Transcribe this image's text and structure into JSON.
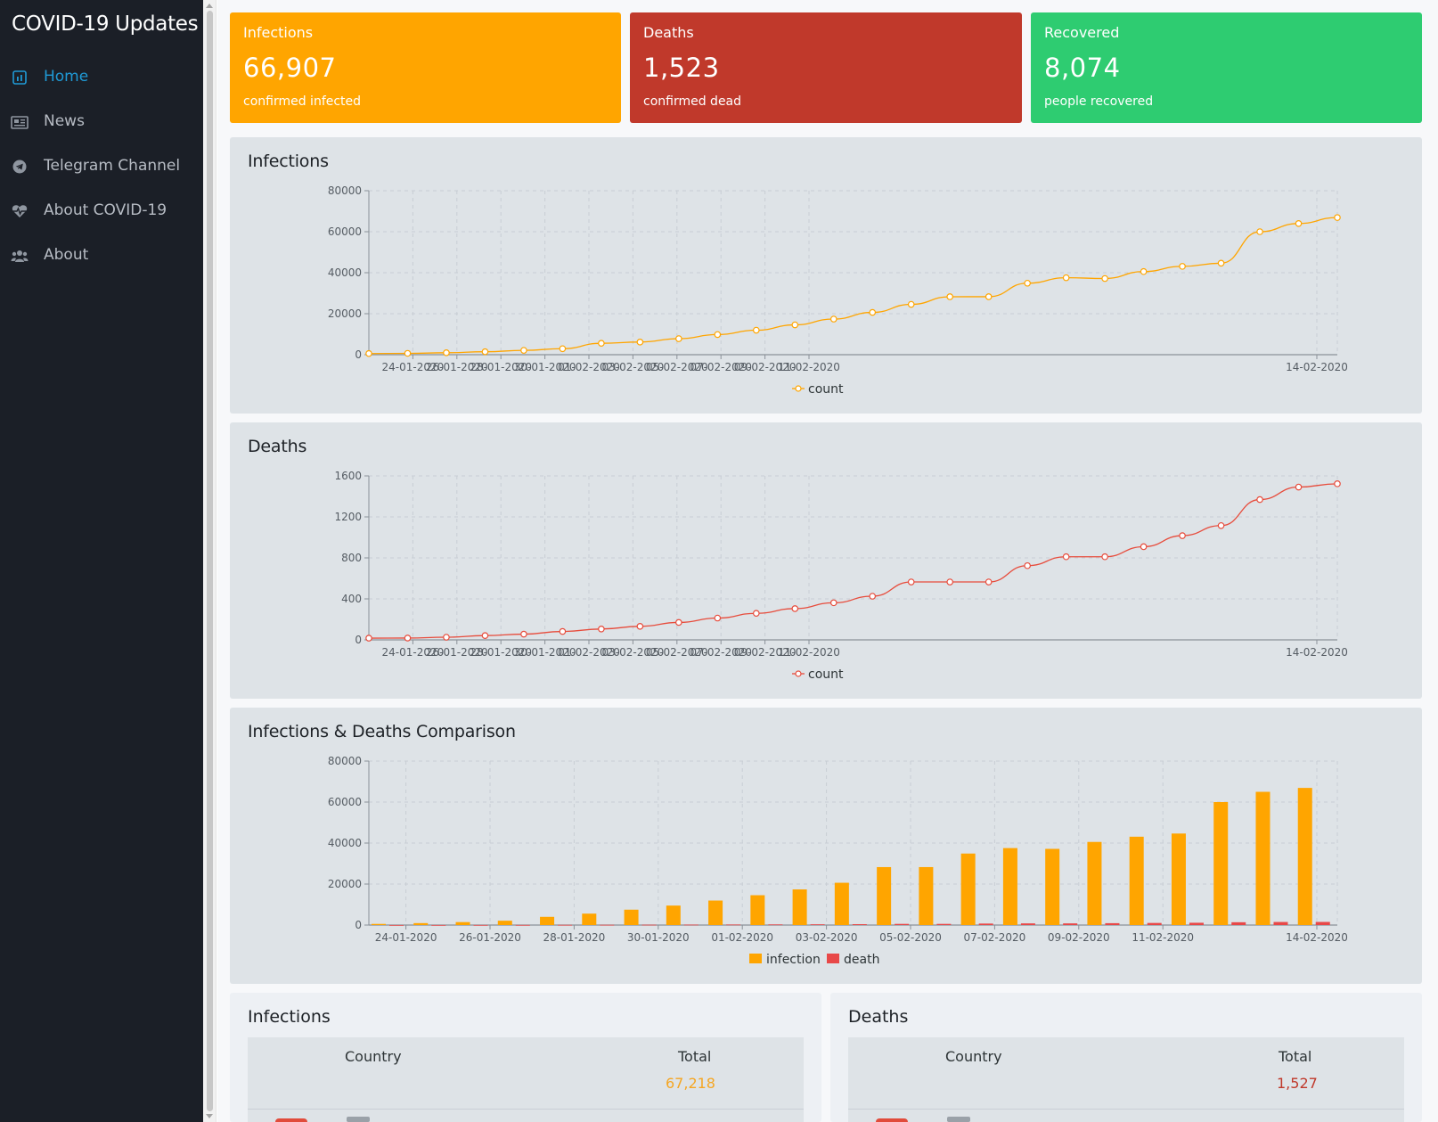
{
  "sidebar": {
    "title": "COVID-19 Updates",
    "items": [
      {
        "label": "Home",
        "icon": "chart-icon",
        "active": true
      },
      {
        "label": "News",
        "icon": "newspaper-icon",
        "active": false
      },
      {
        "label": "Telegram Channel",
        "icon": "telegram-icon",
        "active": false
      },
      {
        "label": "About COVID-19",
        "icon": "heartbeat-icon",
        "active": false
      },
      {
        "label": "About",
        "icon": "users-icon",
        "active": false
      }
    ]
  },
  "stats": [
    {
      "title": "Infections",
      "value": "66,907",
      "subtitle": "confirmed infected",
      "color": "#ffa500"
    },
    {
      "title": "Deaths",
      "value": "1,523",
      "subtitle": "confirmed dead",
      "color": "#c0392b"
    },
    {
      "title": "Recovered",
      "value": "8,074",
      "subtitle": "people recovered",
      "color": "#2ecc71"
    }
  ],
  "charts": {
    "infections_title": "Infections",
    "deaths_title": "Deaths",
    "comparison_title": "Infections & Deaths Comparison"
  },
  "chart_data": [
    {
      "type": "line",
      "title": "Infections",
      "x_ticks": [
        "24-01-2020",
        "26-01-2020",
        "28-01-2020",
        "30-01-2020",
        "01-02-2020",
        "03-02-2020",
        "05-02-2020",
        "07-02-2020",
        "09-02-2020",
        "11-02-2020",
        "14-02-2020"
      ],
      "ylim": [
        0,
        80000
      ],
      "y_ticks": [
        0,
        20000,
        40000,
        60000,
        80000
      ],
      "grid": true,
      "legend_position": "bottom",
      "series": [
        {
          "name": "count",
          "color": "#ffa500",
          "values": [
            555,
            654,
            941,
            1434,
            2118,
            2927,
            5578,
            6165,
            7818,
            9826,
            11946,
            14557,
            17391,
            20630,
            24554,
            28276,
            28285,
            34886,
            37552,
            37170,
            40553,
            43099,
            44653,
            60000,
            64000,
            66907
          ]
        }
      ]
    },
    {
      "type": "line",
      "title": "Deaths",
      "x_ticks": [
        "24-01-2020",
        "26-01-2020",
        "28-01-2020",
        "30-01-2020",
        "01-02-2020",
        "03-02-2020",
        "05-02-2020",
        "07-02-2020",
        "09-02-2020",
        "11-02-2020",
        "14-02-2020"
      ],
      "ylim": [
        0,
        1600
      ],
      "y_ticks": [
        0,
        400,
        800,
        1200,
        1600
      ],
      "grid": true,
      "legend_position": "bottom",
      "series": [
        {
          "name": "count",
          "color": "#e74c3c",
          "values": [
            17,
            18,
            26,
            42,
            56,
            82,
            106,
            132,
            170,
            213,
            259,
            305,
            362,
            426,
            565,
            565,
            565,
            724,
            811,
            811,
            909,
            1017,
            1115,
            1369,
            1491,
            1523
          ]
        }
      ]
    },
    {
      "type": "bar",
      "title": "Infections & Deaths Comparison",
      "x_ticks": [
        "24-01-2020",
        "26-01-2020",
        "28-01-2020",
        "30-01-2020",
        "01-02-2020",
        "03-02-2020",
        "05-02-2020",
        "07-02-2020",
        "09-02-2020",
        "11-02-2020",
        "14-02-2020"
      ],
      "ylim": [
        0,
        80000
      ],
      "y_ticks": [
        0,
        20000,
        40000,
        60000,
        80000
      ],
      "grid": true,
      "legend_position": "bottom",
      "series": [
        {
          "name": "infection",
          "color": "#ffa500",
          "values": [
            555,
            941,
            1434,
            2118,
            4000,
            5578,
            7500,
            9500,
            11946,
            14557,
            17391,
            20630,
            28276,
            28285,
            34886,
            37552,
            37170,
            40553,
            43099,
            44653,
            60000,
            65000,
            66907
          ]
        },
        {
          "name": "death",
          "color": "#e84848",
          "values": [
            17,
            26,
            42,
            56,
            106,
            132,
            170,
            213,
            259,
            305,
            362,
            426,
            565,
            565,
            724,
            811,
            811,
            909,
            1017,
            1115,
            1369,
            1491,
            1523
          ]
        }
      ]
    }
  ],
  "tables": [
    {
      "title": "Infections",
      "col_country": "Country",
      "col_total": "Total",
      "total": "67,218",
      "total_color": "#f5a623"
    },
    {
      "title": "Deaths",
      "col_country": "Country",
      "col_total": "Total",
      "total": "1,527",
      "total_color": "#c0392b"
    }
  ]
}
